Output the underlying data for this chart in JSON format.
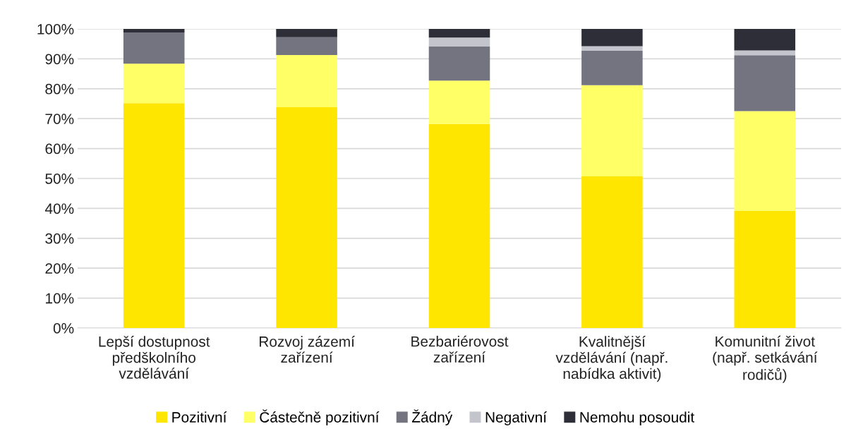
{
  "chart_data": {
    "type": "bar",
    "stacked": true,
    "categories": [
      "Lepší dostupnost\npředškolního\nvzdělávání",
      "Rozvoj zázemí\nzařízení",
      "Bezbariérovost\nzařízení",
      "Kvalitnější\nvzdělávání (např.\nnabídka aktivit)",
      "Komunitní život\n(např. setkávání\nrodičů)"
    ],
    "series": [
      {
        "name": "Pozitivní",
        "color": "#ffe600",
        "values": [
          75.2,
          73.8,
          68.2,
          50.7,
          39.2
        ]
      },
      {
        "name": "Částečně pozitivní",
        "color": "#ffff66",
        "values": [
          13.2,
          17.5,
          14.5,
          30.5,
          33.3
        ]
      },
      {
        "name": "Žádný",
        "color": "#747480",
        "values": [
          10.4,
          5.9,
          11.4,
          11.5,
          18.7
        ]
      },
      {
        "name": "Negativní",
        "color": "#c4c4cd",
        "values": [
          0,
          0,
          3.0,
          1.5,
          1.6
        ]
      },
      {
        "name": "Nemohu posoudit",
        "color": "#2e2e38",
        "values": [
          1.2,
          2.8,
          2.9,
          5.8,
          7.2
        ]
      }
    ],
    "ylim": [
      0,
      100
    ],
    "yticks": [
      {
        "value": 0,
        "label": "0%"
      },
      {
        "value": 10,
        "label": "10%"
      },
      {
        "value": 20,
        "label": "20%"
      },
      {
        "value": 30,
        "label": "30%"
      },
      {
        "value": 40,
        "label": "40%"
      },
      {
        "value": 50,
        "label": "50%"
      },
      {
        "value": 60,
        "label": "60%"
      },
      {
        "value": 70,
        "label": "70%"
      },
      {
        "value": 80,
        "label": "80%"
      },
      {
        "value": 90,
        "label": "90%"
      },
      {
        "value": 100,
        "label": "100%"
      }
    ],
    "grid": "y",
    "legend": "bottom"
  }
}
